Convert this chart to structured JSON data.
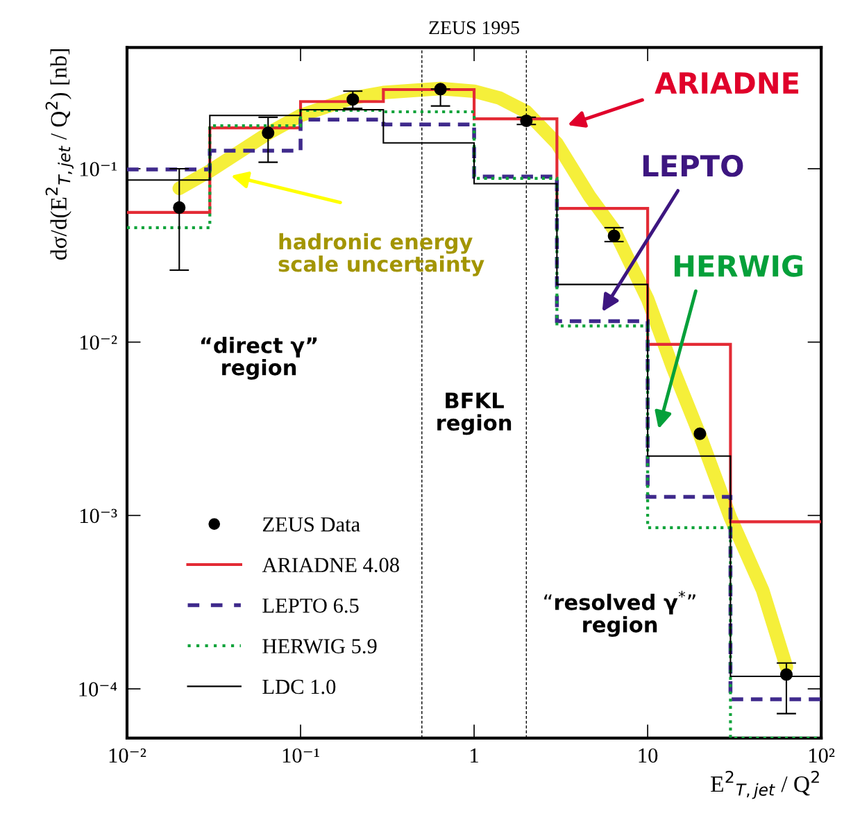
{
  "chart_data": {
    "type": "histogram",
    "title": "ZEUS 1995",
    "xlabel": "E$^{2}$$_{T,jet}$ / Q$^{2}$",
    "ylabel": "dσ/d(E$^{2}$$_{T,jet}$ / Q$^{2}$) [nb]",
    "log": "xy",
    "xlim": [
      0.01,
      100
    ],
    "ylim": [
      5.2e-05,
      0.5
    ],
    "xticks": [
      {
        "value": 0.01,
        "label": "10⁻²"
      },
      {
        "value": 0.1,
        "label": "10⁻¹"
      },
      1,
      10,
      {
        "value": 100,
        "label": "10²"
      }
    ],
    "yticks": [
      {
        "value": 0.0001,
        "label": "10⁻⁴"
      },
      {
        "value": 0.001,
        "label": "10⁻³"
      },
      {
        "value": 0.01,
        "label": "10⁻²"
      },
      {
        "value": 0.1,
        "label": "10⁻¹"
      }
    ],
    "bins": [
      0.01,
      0.03,
      0.1,
      0.3,
      1,
      3,
      10,
      30,
      100
    ],
    "legend": "bottom left",
    "series": [
      {
        "type": "line",
        "color": "#f5ef3a",
        "x": [
          0.02,
          0.03,
          0.065,
          0.1,
          0.2,
          0.3,
          0.64,
          1,
          1.4,
          2,
          3,
          4.6,
          6.4,
          10,
          14,
          20,
          30,
          46,
          63
        ],
        "values": [
          0.077,
          0.097,
          0.16,
          0.203,
          0.256,
          0.275,
          0.29,
          0.28,
          0.256,
          0.213,
          0.14,
          0.07,
          0.0445,
          0.0177,
          0.00705,
          0.0029,
          0.00097,
          0.00037,
          0.000134
        ]
      },
      {
        "name": "ARIADNE 4.08",
        "color": "#e32b35",
        "line_style": "solid",
        "values": [
          0.056,
          0.172,
          0.244,
          0.286,
          0.194,
          0.059,
          0.0097,
          0.00092
        ]
      },
      {
        "name": "LEPTO 6.5",
        "color": "#3f2a8c",
        "line_style": "dashed",
        "values": [
          0.099,
          0.127,
          0.192,
          0.18,
          0.09,
          0.0132,
          0.00128,
          8.7e-05
        ]
      },
      {
        "name": "HERWIG 5.9",
        "color": "#0ea33a",
        "line_style": "dotted",
        "values": [
          0.0457,
          0.177,
          0.217,
          0.213,
          0.088,
          0.0124,
          0.00085,
          5.2e-05
        ]
      },
      {
        "name": "LDC 1.0",
        "color": "#000000",
        "line_style": "solid",
        "values": [
          0.086,
          0.203,
          0.219,
          0.141,
          0.082,
          0.0215,
          0.0022,
          0.000118
        ]
      },
      {
        "type": "scatter",
        "name": "ZEUS Data",
        "color": "#000000",
        "marker": "circle",
        "x": [
          0.02,
          0.065,
          0.2,
          0.64,
          2,
          6.4,
          20,
          63
        ],
        "values": [
          0.0597,
          0.161,
          0.251,
          0.288,
          0.189,
          0.041,
          0.00296,
          0.000121
        ],
        "errors": [
          [
            0.026,
            0.1
          ],
          [
            0.109,
            0.198
          ],
          [
            0.223,
            0.28
          ],
          [
            0.23,
            0.288
          ],
          [
            0.18,
            0.198
          ],
          [
            0.038,
            0.0457
          ],
          null,
          [
            7.2e-05,
            0.000141
          ]
        ]
      }
    ],
    "ref_lines": [
      {
        "axis": "x",
        "value": 0.5,
        "color": "#000000",
        "line_style": "dashed"
      },
      {
        "axis": "x",
        "value": 2,
        "color": "#000000",
        "line_style": "dashed"
      }
    ],
    "annotations": [
      "ARIADNE",
      "LEPTO",
      "HERWIG",
      "hadronic energy\nscale uncertainty",
      "“direct γ”\nregion",
      "BFKL\nregion",
      "“resolved γ$^{*}$”\nregion"
    ]
  }
}
